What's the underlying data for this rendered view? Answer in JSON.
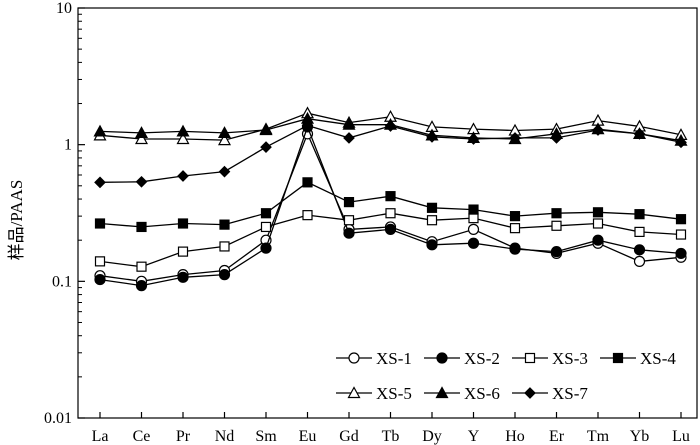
{
  "chart_data": {
    "type": "line",
    "yscale": "log",
    "ylim": [
      0.01,
      10
    ],
    "yticks": [
      "0.01",
      "0.1",
      "1",
      "10"
    ],
    "ylabel": "样品/PAAS",
    "xlabel": "",
    "categories": [
      "La",
      "Ce",
      "Pr",
      "Nd",
      "Sm",
      "Eu",
      "Gd",
      "Tb",
      "Dy",
      "Y",
      "Ho",
      "Er",
      "Tm",
      "Yb",
      "Lu"
    ],
    "legend_position": "bottom-right",
    "grid": false,
    "series": [
      {
        "name": "XS-1",
        "marker": "circle-open",
        "values": [
          0.11,
          0.1,
          0.112,
          0.12,
          0.2,
          1.2,
          0.24,
          0.25,
          0.195,
          0.24,
          0.175,
          0.16,
          0.19,
          0.14,
          0.15
        ]
      },
      {
        "name": "XS-2",
        "marker": "circle-filled",
        "values": [
          0.103,
          0.093,
          0.107,
          0.112,
          0.175,
          1.35,
          0.225,
          0.24,
          0.185,
          0.19,
          0.172,
          0.165,
          0.2,
          0.17,
          0.16
        ]
      },
      {
        "name": "XS-3",
        "marker": "square-open",
        "values": [
          0.14,
          0.128,
          0.165,
          0.18,
          0.25,
          0.305,
          0.28,
          0.315,
          0.28,
          0.29,
          0.245,
          0.255,
          0.265,
          0.23,
          0.22
        ]
      },
      {
        "name": "XS-4",
        "marker": "square-filled",
        "values": [
          0.265,
          0.25,
          0.265,
          0.26,
          0.315,
          0.53,
          0.38,
          0.42,
          0.345,
          0.335,
          0.3,
          0.315,
          0.32,
          0.31,
          0.285
        ]
      },
      {
        "name": "XS-5",
        "marker": "triangle-open",
        "values": [
          1.17,
          1.1,
          1.1,
          1.08,
          1.3,
          1.7,
          1.45,
          1.6,
          1.35,
          1.3,
          1.27,
          1.3,
          1.5,
          1.36,
          1.18
        ]
      },
      {
        "name": "XS-6",
        "marker": "triangle-filled",
        "values": [
          1.25,
          1.22,
          1.25,
          1.22,
          1.28,
          1.55,
          1.4,
          1.4,
          1.17,
          1.12,
          1.1,
          1.2,
          1.3,
          1.2,
          1.07
        ]
      },
      {
        "name": "XS-7",
        "marker": "diamond-filled",
        "values": [
          0.53,
          0.535,
          0.59,
          0.635,
          0.96,
          1.38,
          1.12,
          1.37,
          1.14,
          1.1,
          1.12,
          1.12,
          1.28,
          1.2,
          1.04
        ]
      }
    ]
  }
}
